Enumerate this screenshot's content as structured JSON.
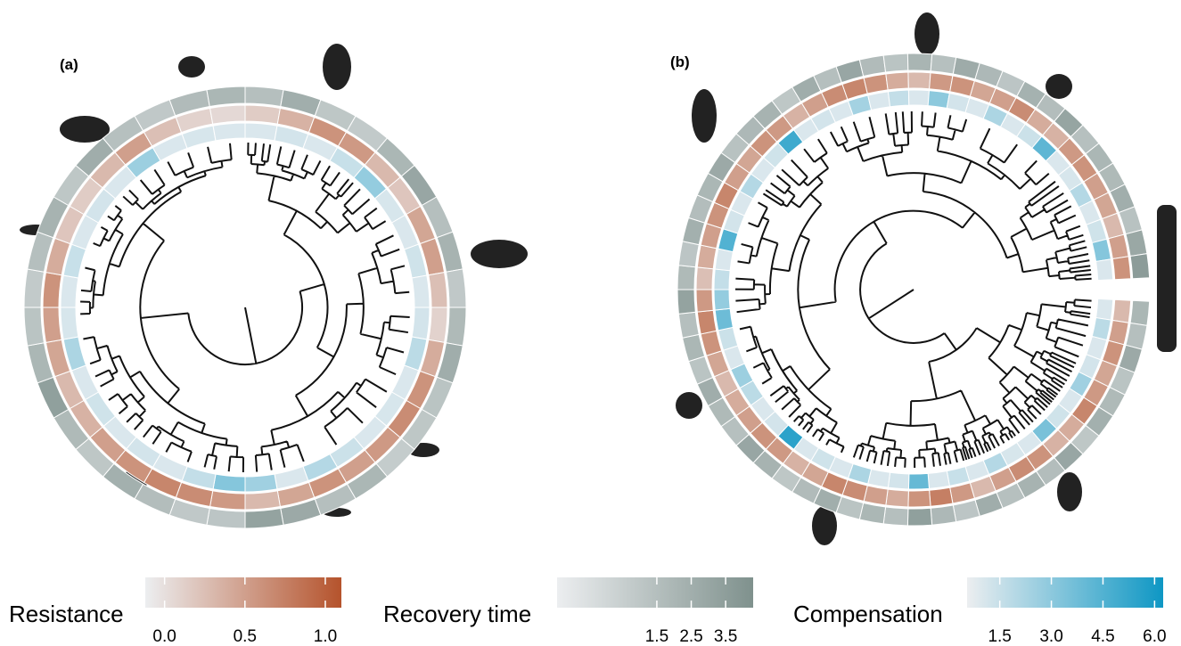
{
  "panels": [
    {
      "label": "(a)",
      "rings": {
        "compensation": [
          1.0,
          1.2,
          1.0,
          1.5,
          2.8,
          1.1,
          1.0,
          1.3,
          1.0,
          1.2,
          1.8,
          1.0,
          1.1,
          1.0,
          1.4,
          2.0,
          1.0,
          2.5,
          3.2,
          1.6,
          1.0,
          1.2,
          1.0,
          1.3,
          1.0,
          2.2,
          1.1,
          1.0,
          1.5,
          1.0,
          1.2,
          1.0,
          2.6,
          1.0,
          1.1,
          1.0
        ],
        "resistance": [
          0.15,
          0.35,
          0.6,
          0.55,
          0.3,
          0.2,
          0.45,
          0.5,
          0.25,
          0.1,
          0.4,
          0.6,
          0.65,
          0.55,
          0.5,
          0.6,
          0.45,
          0.3,
          0.55,
          0.65,
          0.7,
          0.6,
          0.5,
          0.35,
          0.3,
          0.45,
          0.5,
          0.6,
          0.4,
          0.2,
          0.15,
          0.3,
          0.5,
          0.25,
          0.1,
          0.05
        ],
        "recovery_time": [
          1.5,
          2.5,
          1.0,
          0.8,
          2.0,
          3.0,
          1.5,
          2.2,
          0.9,
          1.8,
          2.6,
          1.2,
          1.0,
          0.7,
          2.0,
          1.5,
          2.8,
          3.2,
          1.1,
          0.9,
          1.6,
          2.4,
          1.0,
          1.8,
          3.4,
          2.0,
          1.2,
          0.8,
          1.5,
          2.2,
          1.0,
          2.6,
          1.4,
          0.9,
          1.7,
          2.0
        ]
      }
    },
    {
      "label": "(b)",
      "rings": {
        "compensation": [
          1.0,
          1.8,
          1.0,
          1.2,
          2.5,
          1.0,
          1.3,
          3.5,
          1.0,
          1.1,
          2.0,
          1.0,
          1.5,
          1.0,
          4.0,
          1.2,
          1.0,
          2.2,
          1.0,
          1.3,
          1.0,
          5.5,
          1.2,
          1.0,
          1.8,
          2.6,
          1.0,
          1.4,
          3.8,
          2.8,
          1.6,
          1.0,
          4.5,
          1.2,
          1.0,
          2.0,
          1.0,
          1.3,
          5.0,
          1.0,
          1.2,
          1.0,
          2.4,
          1.0,
          1.6,
          1.0,
          3.0,
          1.2,
          1.0,
          2.2,
          1.0,
          1.4,
          4.2,
          1.0,
          1.1,
          2.0,
          1.0,
          1.3,
          3.2,
          1.0
        ],
        "resistance": [
          0.3,
          0.5,
          0.6,
          0.45,
          0.55,
          0.7,
          0.4,
          0.35,
          0.6,
          0.65,
          0.5,
          0.3,
          0.55,
          0.75,
          0.6,
          0.4,
          0.5,
          0.65,
          0.7,
          0.45,
          0.35,
          0.55,
          0.6,
          0.5,
          0.4,
          0.3,
          0.45,
          0.6,
          0.7,
          0.55,
          0.25,
          0.4,
          0.5,
          0.6,
          0.7,
          0.5,
          0.45,
          0.6,
          0.55,
          0.35,
          0.5,
          0.65,
          0.7,
          0.6,
          0.4,
          0.3,
          0.55,
          0.6,
          0.45,
          0.5,
          0.65,
          0.4,
          0.35,
          0.55,
          0.6,
          0.5,
          0.45,
          0.3,
          0.5,
          0.6
        ],
        "recovery_time": [
          2.0,
          1.5,
          2.8,
          1.2,
          1.8,
          2.4,
          1.0,
          3.0,
          1.6,
          2.2,
          1.4,
          2.6,
          1.1,
          1.9,
          3.4,
          1.5,
          2.0,
          1.2,
          2.5,
          1.7,
          1.0,
          2.2,
          3.0,
          1.4,
          1.8,
          2.6,
          1.2,
          2.0,
          1.5,
          3.2,
          1.8,
          1.1,
          2.4,
          1.6,
          2.0,
          2.8,
          1.3,
          1.9,
          2.2,
          1.0,
          2.6,
          1.5,
          3.0,
          1.7,
          1.2,
          2.1,
          1.4,
          2.7,
          1.9,
          1.1,
          2.3,
          1.6,
          3.1,
          1.4,
          2.0,
          1.8,
          2.5,
          1.3,
          2.9,
          3.6
        ]
      }
    }
  ],
  "legends": {
    "resistance": {
      "title": "Resistance",
      "range": [
        -0.12,
        1.1
      ],
      "colors": [
        "#eceef0",
        "#b5532c"
      ],
      "ticks": [
        {
          "value": 0,
          "label": "0.0"
        },
        0.5,
        {
          "value": 1,
          "label": "1.0"
        }
      ]
    },
    "recovery_time": {
      "title": "Recovery time",
      "range": [
        -1.4,
        4.3
      ],
      "colors": [
        "#eceef0",
        "#7f918d"
      ],
      "ticks": [
        1.5,
        2.5,
        3.5
      ]
    },
    "compensation": {
      "title": "Compensation",
      "range": [
        0.55,
        6.25
      ],
      "colors": [
        "#eceef0",
        "#0e97c4"
      ],
      "ticks": [
        1.5,
        {
          "value": 3,
          "label": "3.0"
        },
        4.5,
        {
          "value": 6,
          "label": "6.0"
        }
      ]
    }
  }
}
